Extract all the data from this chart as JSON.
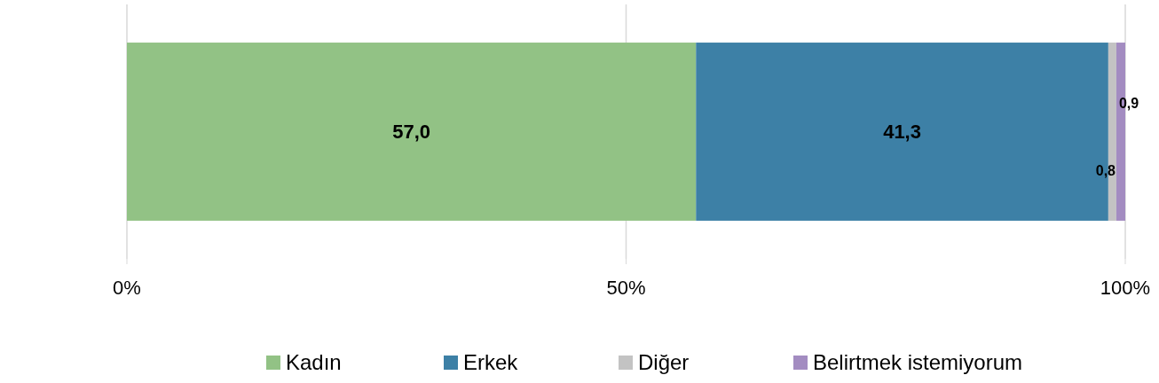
{
  "chart_data": {
    "type": "bar",
    "orientation": "horizontal",
    "stacked": true,
    "categories": [
      null
    ],
    "series": [
      {
        "name": "Kadın",
        "color": "#92c285",
        "values": [
          57.0
        ],
        "value_labels": [
          "57,0"
        ]
      },
      {
        "name": "Erkek",
        "color": "#3d80a6",
        "values": [
          41.3
        ],
        "value_labels": [
          "41,3"
        ]
      },
      {
        "name": "Diğer",
        "color": "#c3c3c3",
        "values": [
          0.8
        ],
        "value_labels": [
          "0,8"
        ]
      },
      {
        "name": "Belirtmek istemiyorum",
        "color": "#a38cc1",
        "values": [
          0.9
        ],
        "value_labels": [
          "0,9"
        ]
      }
    ],
    "xlim": [
      0,
      100
    ],
    "xticks": [
      {
        "value": 0,
        "label": "0%"
      },
      {
        "value": 50,
        "label": "50%"
      },
      {
        "value": 100,
        "label": "100%"
      }
    ],
    "grid": "x",
    "legend": "bottom"
  }
}
